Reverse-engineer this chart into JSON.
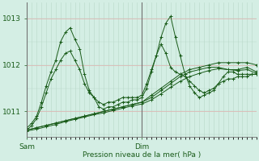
{
  "xlabel": "Pression niveau de la mer( hPa )",
  "background_color": "#d4eee4",
  "plot_bg_color": "#d4eee4",
  "line_color": "#1a5c1a",
  "grid_color_v": "#b8d8c8",
  "grid_color_h": "#e8b0b0",
  "yticks": [
    1011,
    1012,
    1013
  ],
  "ylim": [
    1010.45,
    1013.35
  ],
  "xlim": [
    0,
    48
  ],
  "sam_x": 0,
  "dim_x": 24,
  "series": [
    {
      "x": [
        0,
        1,
        2,
        3,
        4,
        5,
        6,
        7,
        8,
        9,
        10,
        11,
        12,
        13,
        14,
        15,
        16,
        17,
        18,
        19,
        20,
        21,
        22,
        23,
        24,
        25,
        26,
        27,
        28,
        29,
        30,
        31,
        32,
        33,
        34,
        35,
        36,
        37,
        38,
        39,
        40,
        41,
        42,
        43,
        44,
        45,
        46,
        47,
        48
      ],
      "y": [
        1010.65,
        1010.75,
        1010.9,
        1011.2,
        1011.55,
        1011.85,
        1012.1,
        1012.5,
        1012.7,
        1012.8,
        1012.55,
        1012.35,
        1011.8,
        1011.45,
        1011.3,
        1011.1,
        1011.05,
        1011.1,
        1011.1,
        1011.15,
        1011.2,
        1011.2,
        1011.25,
        1011.25,
        1011.3,
        1011.5,
        1011.85,
        1012.2,
        1012.6,
        1012.9,
        1013.05,
        1012.6,
        1012.2,
        1011.8,
        1011.55,
        1011.4,
        1011.3,
        1011.35,
        1011.4,
        1011.45,
        1011.6,
        1011.75,
        1011.85,
        1011.85,
        1011.8,
        1011.8,
        1011.8,
        1011.8,
        1011.8
      ]
    },
    {
      "x": [
        0,
        2,
        4,
        6,
        8,
        10,
        12,
        14,
        16,
        18,
        20,
        22,
        24,
        26,
        28,
        30,
        32,
        34,
        36,
        38,
        40,
        42,
        44,
        46,
        48
      ],
      "y": [
        1010.6,
        1010.65,
        1010.7,
        1010.75,
        1010.8,
        1010.85,
        1010.9,
        1010.95,
        1011.0,
        1011.05,
        1011.1,
        1011.15,
        1011.2,
        1011.35,
        1011.5,
        1011.65,
        1011.8,
        1011.9,
        1011.95,
        1012.0,
        1012.05,
        1012.05,
        1012.05,
        1012.05,
        1012.0
      ]
    },
    {
      "x": [
        0,
        2,
        4,
        6,
        8,
        10,
        12,
        14,
        16,
        18,
        20,
        22,
        24,
        26,
        28,
        30,
        32,
        34,
        36,
        38,
        40,
        42,
        44,
        46,
        48
      ],
      "y": [
        1010.6,
        1010.65,
        1010.7,
        1010.75,
        1010.8,
        1010.85,
        1010.9,
        1010.95,
        1011.0,
        1011.05,
        1011.1,
        1011.15,
        1011.2,
        1011.3,
        1011.45,
        1011.6,
        1011.75,
        1011.85,
        1011.9,
        1011.95,
        1011.95,
        1011.9,
        1011.9,
        1011.95,
        1011.85
      ]
    },
    {
      "x": [
        0,
        1,
        2,
        3,
        4,
        5,
        6,
        7,
        8,
        9,
        10,
        11,
        12,
        13,
        14,
        15,
        16,
        17,
        18,
        19,
        20,
        21,
        22,
        23,
        24,
        25,
        26,
        27,
        28,
        29,
        30,
        31,
        32,
        33,
        34,
        35,
        36,
        37,
        38,
        39,
        40,
        41,
        42,
        43,
        44,
        45,
        46,
        47,
        48
      ],
      "y": [
        1010.6,
        1010.7,
        1010.85,
        1011.1,
        1011.4,
        1011.7,
        1011.9,
        1012.1,
        1012.25,
        1012.3,
        1012.1,
        1011.9,
        1011.6,
        1011.4,
        1011.3,
        1011.2,
        1011.15,
        1011.2,
        1011.2,
        1011.25,
        1011.3,
        1011.3,
        1011.3,
        1011.3,
        1011.35,
        1011.6,
        1011.9,
        1012.2,
        1012.45,
        1012.25,
        1011.95,
        1011.85,
        1011.8,
        1011.75,
        1011.65,
        1011.55,
        1011.45,
        1011.4,
        1011.45,
        1011.5,
        1011.6,
        1011.65,
        1011.7,
        1011.7,
        1011.75,
        1011.75,
        1011.75,
        1011.8,
        1011.8
      ]
    },
    {
      "x": [
        0,
        2,
        4,
        6,
        8,
        10,
        12,
        14,
        16,
        18,
        20,
        22,
        24,
        26,
        28,
        30,
        32,
        34,
        36,
        38,
        40,
        44,
        46,
        48
      ],
      "y": [
        1010.58,
        1010.62,
        1010.67,
        1010.72,
        1010.78,
        1010.83,
        1010.88,
        1010.93,
        1010.97,
        1011.02,
        1011.07,
        1011.12,
        1011.16,
        1011.25,
        1011.38,
        1011.52,
        1011.65,
        1011.75,
        1011.82,
        1011.88,
        1011.92,
        1011.88,
        1011.9,
        1011.82
      ]
    }
  ]
}
